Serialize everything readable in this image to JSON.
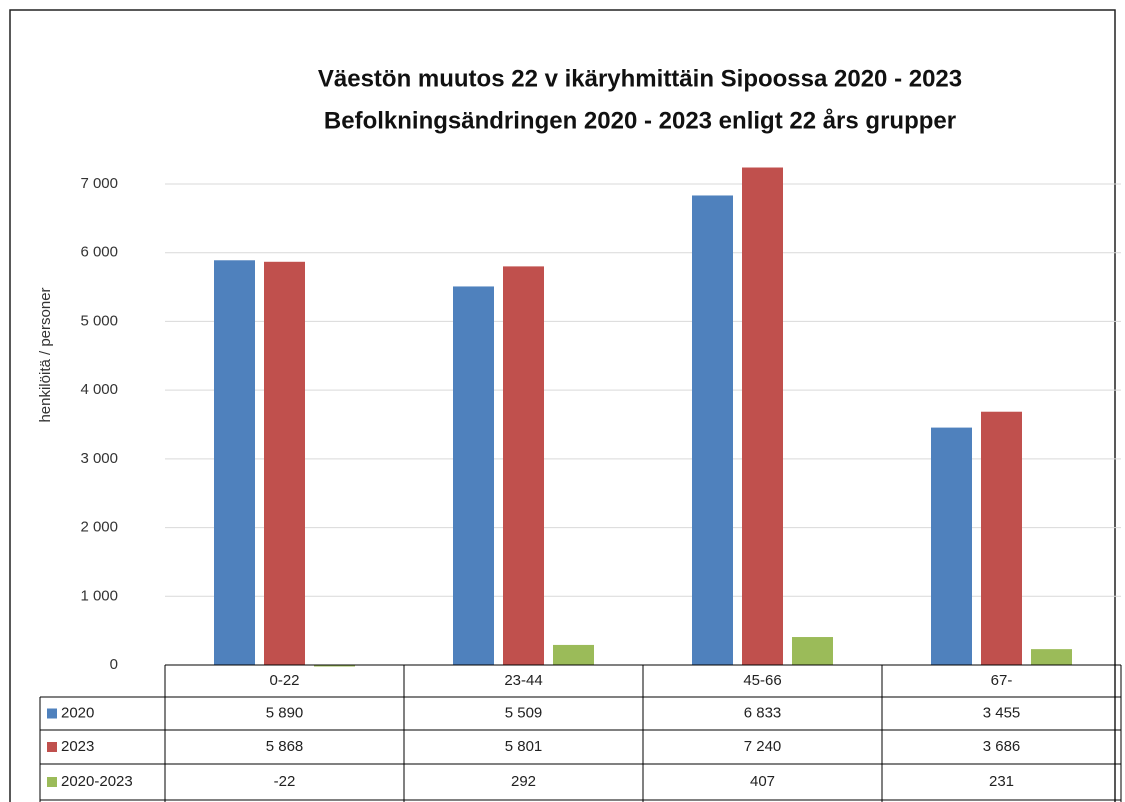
{
  "chart_data": {
    "type": "bar",
    "title": "Väestön muutos 22 v ikäryhmittäin Sipoossa 2020 - 2023",
    "subtitle": "Befolkningsändringen 2020 - 2023 enligt 22 års grupper",
    "y_label": "henkilöitä / personer",
    "categories": [
      "0-22",
      "23-44",
      "45-66",
      "67-"
    ],
    "series": [
      {
        "name": "2020",
        "color": "#4f81bd",
        "values": [
          5890,
          5509,
          6833,
          3455
        ],
        "value_labels": [
          "5 890",
          "5 509",
          "6 833",
          "3 455"
        ]
      },
      {
        "name": "2023",
        "color": "#c0504d",
        "values": [
          5868,
          5801,
          7240,
          3686
        ],
        "value_labels": [
          "5 868",
          "5 801",
          "7 240",
          "3 686"
        ]
      },
      {
        "name": "2020-2023",
        "color": "#9bbb59",
        "values": [
          -22,
          292,
          407,
          231
        ],
        "value_labels": [
          "-22",
          "292",
          "407",
          "231"
        ]
      }
    ],
    "ylim": [
      0,
      7000
    ],
    "yticks": [
      0,
      {
        "value": 1000,
        "label": "1 000"
      },
      {
        "value": 2000,
        "label": "2 000"
      },
      {
        "value": 3000,
        "label": "3 000"
      },
      {
        "value": 4000,
        "label": "4 000"
      },
      {
        "value": 5000,
        "label": "5 000"
      },
      {
        "value": 6000,
        "label": "6 000"
      },
      {
        "value": 7000,
        "label": "7 000"
      }
    ],
    "grid": true
  }
}
